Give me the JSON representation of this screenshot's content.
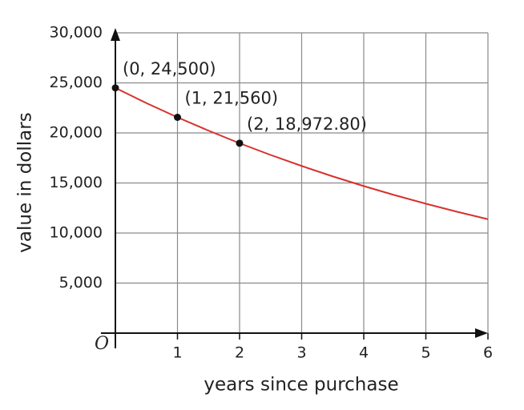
{
  "chart_data": {
    "type": "line",
    "x_label": "years since purchase",
    "y_label": "value in dollars",
    "origin_label": "O",
    "xlim": [
      0,
      6
    ],
    "ylim": [
      0,
      30000
    ],
    "xticks": [
      1,
      2,
      3,
      4,
      5,
      6
    ],
    "yticks": [
      {
        "value": 5000,
        "label": "5,000"
      },
      {
        "value": 10000,
        "label": "10,000"
      },
      {
        "value": 15000,
        "label": "15,000"
      },
      {
        "value": 20000,
        "label": "20,000"
      },
      {
        "value": 25000,
        "label": "25,000"
      },
      {
        "value": 30000,
        "label": "30,000"
      }
    ],
    "grid": true,
    "curve": {
      "color": "#d8312c",
      "x": [
        0,
        0.5,
        1,
        1.5,
        2,
        2.5,
        3,
        3.5,
        4,
        4.5,
        5,
        5.5,
        6
      ],
      "values": [
        24500,
        22980,
        21560,
        20230,
        18970,
        17800,
        16700,
        15660,
        14690,
        13780,
        12930,
        12130,
        11380
      ]
    },
    "points": {
      "color": "#111111",
      "x": [
        0,
        1,
        2
      ],
      "values": [
        24500,
        21560,
        18972.8
      ],
      "value_labels": [
        "(0, 24,500)",
        "(1, 21,560)",
        "(2, 18,972.80)"
      ]
    }
  }
}
